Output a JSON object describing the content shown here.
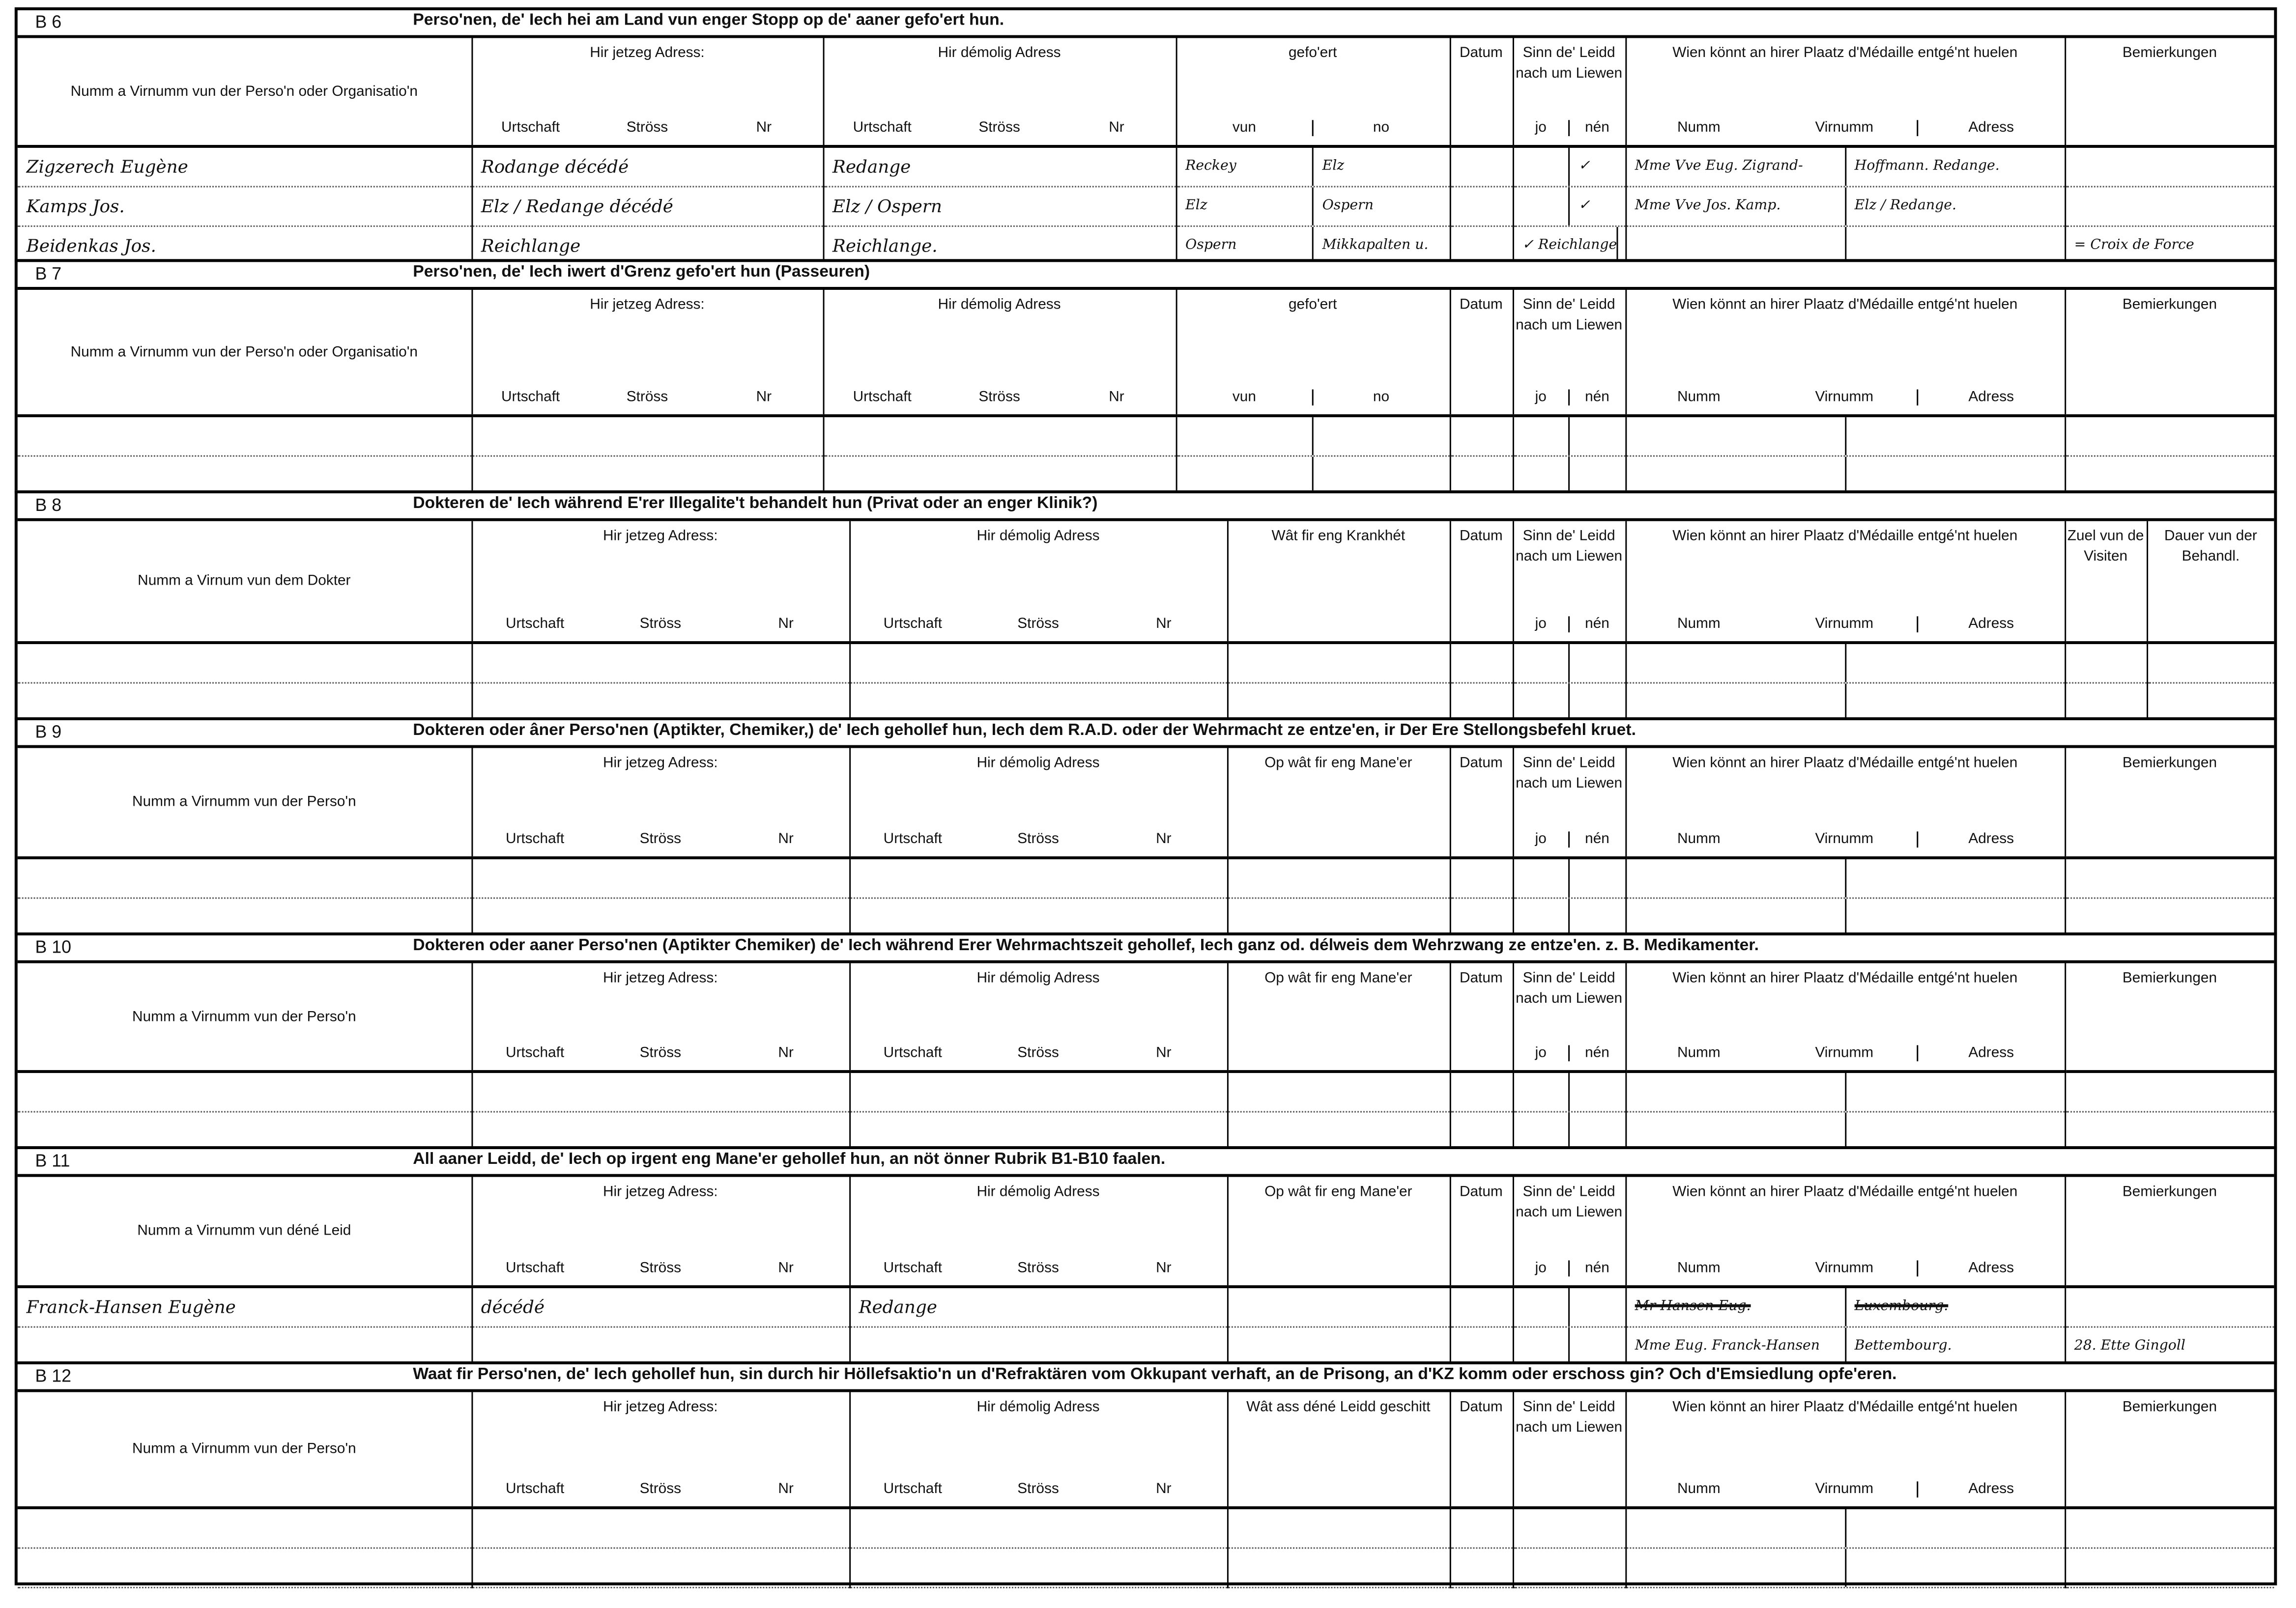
{
  "sections": [
    {
      "label": "B 6",
      "title": "Perso'nen, de' Iech hei am Land vun enger Stopp op de' aaner gefo'ert hun.",
      "columns": [
        {
          "key": "name",
          "header": "Numm a Virnumm vun der Perso'n oder Organisatio'n",
          "subs": []
        },
        {
          "key": "cur",
          "header": "Hir jetzeg Adress:",
          "subs": [
            "Urtschaft",
            "Ströss",
            "Nr"
          ]
        },
        {
          "key": "former",
          "header": "Hir démolig Adress",
          "subs": [
            "Urtschaft",
            "Ströss",
            "Nr"
          ]
        },
        {
          "key": "gefoert",
          "header": "gefo'ert",
          "subs": [
            "vun",
            "no"
          ]
        },
        {
          "key": "datum",
          "header": "Datum",
          "subs": []
        },
        {
          "key": "sinn",
          "header": "Sinn de' Leidd nach um Liewen",
          "subs": [
            "jo",
            "nén"
          ]
        },
        {
          "key": "medaille",
          "header": "Wien könnt an hirer Plaatz d'Médaille entgé'nt huelen",
          "subs": [
            "Numm",
            "Virnumm",
            "Adress"
          ]
        },
        {
          "key": "bem",
          "header": "Bemierkungen",
          "subs": []
        }
      ],
      "rows": [
        [
          "Zigzerech Eugène",
          "Rodange décédé",
          "Redange",
          [
            "Reckey",
            "Elz"
          ],
          "",
          [
            "",
            "✓"
          ],
          [
            "Mme Vve Eug. Zigrand-",
            "Hoffmann. Redange."
          ],
          ""
        ],
        [
          "Kamps Jos.",
          "Elz / Redange décédé",
          "Elz / Ospern",
          [
            "Elz",
            "Ospern"
          ],
          "",
          [
            "",
            "✓"
          ],
          [
            "Mme Vve Jos. Kamp.",
            "Elz / Redange."
          ],
          ""
        ],
        [
          "Beidenkas Jos.",
          "Reichlange",
          "Reichlange.",
          [
            "Ospern",
            "Mikkapalten u."
          ],
          "",
          [
            "✓ Reichlange",
            ""
          ],
          [
            "",
            ""
          ],
          "= Croix de Force"
        ]
      ]
    },
    {
      "label": "B 7",
      "title": "Perso'nen, de' Iech iwert d'Grenz gefo'ert hun (Passeuren)",
      "columns": [
        {
          "key": "name",
          "header": "Numm a Virnumm vun der Perso'n oder Organisatio'n",
          "subs": []
        },
        {
          "key": "cur",
          "header": "Hir jetzeg Adress:",
          "subs": [
            "Urtschaft",
            "Ströss",
            "Nr"
          ]
        },
        {
          "key": "former",
          "header": "Hir démolig Adress",
          "subs": [
            "Urtschaft",
            "Ströss",
            "Nr"
          ]
        },
        {
          "key": "gefoert",
          "header": "gefo'ert",
          "subs": [
            "vun",
            "no"
          ]
        },
        {
          "key": "datum",
          "header": "Datum",
          "subs": []
        },
        {
          "key": "sinn",
          "header": "Sinn de' Leidd nach um Liewen",
          "subs": [
            "jo",
            "nén"
          ]
        },
        {
          "key": "medaille",
          "header": "Wien könnt an hirer Plaatz d'Médaille entgé'nt huelen",
          "subs": [
            "Numm",
            "Virnumm",
            "Adress"
          ]
        },
        {
          "key": "bem",
          "header": "Bemierkungen",
          "subs": []
        }
      ],
      "rows": [
        [
          "",
          "",
          "",
          [
            "",
            ""
          ],
          "",
          [
            "",
            ""
          ],
          [
            "",
            ""
          ],
          ""
        ],
        [
          "",
          "",
          "",
          [
            "",
            ""
          ],
          "",
          [
            "",
            ""
          ],
          [
            "",
            ""
          ],
          ""
        ]
      ]
    },
    {
      "label": "B 8",
      "title": "Dokteren de' Iech während E'rer Illegalite't behandelt hun (Privat oder an enger Klinik?)",
      "columns": [
        {
          "key": "name",
          "header": "Numm a Virnum vun dem Dokter",
          "subs": []
        },
        {
          "key": "cur",
          "header": "Hir jetzeg Adress:",
          "subs": [
            "Urtschaft",
            "Ströss",
            "Nr"
          ]
        },
        {
          "key": "former",
          "header": "Hir démolig Adress",
          "subs": [
            "Urtschaft",
            "Ströss",
            "Nr"
          ]
        },
        {
          "key": "krank",
          "header": "Wât fir eng Krankhét",
          "subs": []
        },
        {
          "key": "datum",
          "header": "Datum",
          "subs": []
        },
        {
          "key": "sinn",
          "header": "Sinn de' Leidd nach um Liewen",
          "subs": [
            "jo",
            "nén"
          ]
        },
        {
          "key": "medaille",
          "header": "Wien könnt an hirer Plaatz d'Médaille entgé'nt huelen",
          "subs": [
            "Numm",
            "Virnumm",
            "Adress"
          ]
        },
        {
          "key": "zuel",
          "header": "Zuel vun de Visiten",
          "subs": []
        },
        {
          "key": "dauer",
          "header": "Dauer vun der Behandl.",
          "subs": []
        }
      ],
      "rows": [
        [
          "",
          "",
          "",
          "",
          "",
          [
            "",
            ""
          ],
          [
            "",
            ""
          ],
          "",
          ""
        ],
        [
          "",
          "",
          "",
          "",
          "",
          [
            "",
            ""
          ],
          [
            "",
            ""
          ],
          "",
          ""
        ]
      ]
    },
    {
      "label": "B 9",
      "title": "Dokteren oder âner Perso'nen (Aptikter, Chemiker,) de' Iech gehollef hun, Iech dem R.A.D. oder der Wehrmacht ze entze'en, ir Der Ere Stellongsbefehl kruet.",
      "columns": [
        {
          "key": "name",
          "header": "Numm a Virnumm vun der Perso'n",
          "subs": []
        },
        {
          "key": "cur",
          "header": "Hir jetzeg Adress:",
          "subs": [
            "Urtschaft",
            "Ströss",
            "Nr"
          ]
        },
        {
          "key": "former",
          "header": "Hir démolig Adress",
          "subs": [
            "Urtschaft",
            "Ströss",
            "Nr"
          ]
        },
        {
          "key": "op",
          "header": "Op wât fir eng Mane'er",
          "subs": []
        },
        {
          "key": "datum",
          "header": "Datum",
          "subs": []
        },
        {
          "key": "sinn",
          "header": "Sinn de' Leidd nach um Liewen",
          "subs": [
            "jo",
            "nén"
          ]
        },
        {
          "key": "medaille",
          "header": "Wien könnt an hirer Plaatz d'Médaille entgé'nt huelen",
          "subs": [
            "Numm",
            "Virnumm",
            "Adress"
          ]
        },
        {
          "key": "bem",
          "header": "Bemierkungen",
          "subs": []
        }
      ],
      "rows": [
        [
          "",
          "",
          "",
          "",
          "",
          [
            "",
            ""
          ],
          [
            "",
            ""
          ],
          ""
        ],
        [
          "",
          "",
          "",
          "",
          "",
          [
            "",
            ""
          ],
          [
            "",
            ""
          ],
          ""
        ]
      ]
    },
    {
      "label": "B 10",
      "title": "Dokteren oder aaner Perso'nen (Aptikter Chemiker) de' Iech während Erer Wehrmachtszeit gehollef, Iech ganz od. délweis dem Wehrzwang ze entze'en. z. B. Medikamenter.",
      "columns": [
        {
          "key": "name",
          "header": "Numm a Virnumm vun der Perso'n",
          "subs": []
        },
        {
          "key": "cur",
          "header": "Hir jetzeg Adress:",
          "subs": [
            "Urtschaft",
            "Ströss",
            "Nr"
          ]
        },
        {
          "key": "former",
          "header": "Hir démolig Adress",
          "subs": [
            "Urtschaft",
            "Ströss",
            "Nr"
          ]
        },
        {
          "key": "op",
          "header": "Op wât fir eng Mane'er",
          "subs": []
        },
        {
          "key": "datum",
          "header": "Datum",
          "subs": []
        },
        {
          "key": "sinn",
          "header": "Sinn de' Leidd nach um Liewen",
          "subs": [
            "jo",
            "nén"
          ]
        },
        {
          "key": "medaille",
          "header": "Wien könnt an hirer Plaatz d'Médaille entgé'nt huelen",
          "subs": [
            "Numm",
            "Virnumm",
            "Adress"
          ]
        },
        {
          "key": "bem",
          "header": "Bemierkungen",
          "subs": []
        }
      ],
      "rows": [
        [
          "",
          "",
          "",
          "",
          "",
          [
            "",
            ""
          ],
          [
            "",
            ""
          ],
          ""
        ],
        [
          "",
          "",
          "",
          "",
          "",
          [
            "",
            ""
          ],
          [
            "",
            ""
          ],
          ""
        ]
      ]
    },
    {
      "label": "B 11",
      "title": "All aaner Leidd, de' Iech op irgent eng Mane'er gehollef hun, an nöt önner Rubrik B1-B10 faalen.",
      "columns": [
        {
          "key": "name",
          "header": "Numm a Virnumm vun déné Leid",
          "subs": []
        },
        {
          "key": "cur",
          "header": "Hir jetzeg Adress:",
          "subs": [
            "Urtschaft",
            "Ströss",
            "Nr"
          ]
        },
        {
          "key": "former",
          "header": "Hir démolig Adress",
          "subs": [
            "Urtschaft",
            "Ströss",
            "Nr"
          ]
        },
        {
          "key": "op",
          "header": "Op wât fir eng Mane'er",
          "subs": []
        },
        {
          "key": "datum",
          "header": "Datum",
          "subs": []
        },
        {
          "key": "sinn",
          "header": "Sinn de' Leidd nach um Liewen",
          "subs": [
            "jo",
            "nén"
          ]
        },
        {
          "key": "medaille",
          "header": "Wien könnt an hirer Plaatz d'Médaille entgé'nt huelen",
          "subs": [
            "Numm",
            "Virnumm",
            "Adress"
          ]
        },
        {
          "key": "bem",
          "header": "Bemierkungen",
          "subs": []
        }
      ],
      "rows": [
        [
          "Franck-Hansen Eugène",
          "décédé",
          "Redange",
          "",
          "",
          [
            "",
            ""
          ],
          [
            "Mr Hansen Eug.",
            "Luxembourg."
          ],
          ""
        ],
        [
          "",
          "",
          "",
          "",
          "",
          [
            "",
            ""
          ],
          [
            "Mme Eug. Franck-Hansen",
            "Bettembourg."
          ],
          "28. Ette Gingoll"
        ]
      ],
      "struck": [
        "Mr Hansen Eug.",
        "Luxembourg."
      ]
    },
    {
      "label": "B 12",
      "title": "Waat fir Perso'nen, de' Iech gehollef hun, sin durch hir Höllefsaktio'n un d'Refraktären vom Okkupant verhaft, an de Prisong, an d'KZ komm oder erschoss gin? Och d'Emsiedlung opfe'eren.",
      "columns": [
        {
          "key": "name",
          "header": "Numm a Virnumm vun der Perso'n",
          "subs": []
        },
        {
          "key": "cur",
          "header": "Hir jetzeg Adress:",
          "subs": [
            "Urtschaft",
            "Ströss",
            "Nr"
          ]
        },
        {
          "key": "former",
          "header": "Hir démolig Adress",
          "subs": [
            "Urtschaft",
            "Ströss",
            "Nr"
          ]
        },
        {
          "key": "wat",
          "header": "Wât ass déné Leidd geschitt",
          "subs": []
        },
        {
          "key": "datum",
          "header": "Datum",
          "subs": []
        },
        {
          "key": "sinn",
          "header": "Sinn de' Leidd nach um Liewen",
          "subs": []
        },
        {
          "key": "medaille",
          "header": "Wien könnt an hirer Plaatz d'Médaille entgé'nt huelen",
          "subs": [
            "Numm",
            "Virnumm",
            "Adress"
          ]
        },
        {
          "key": "bem",
          "header": "Bemierkungen",
          "subs": []
        }
      ],
      "rows": [
        [
          "",
          "",
          "",
          "",
          "",
          "",
          [
            "",
            ""
          ],
          ""
        ],
        [
          "",
          "",
          "",
          "",
          "",
          "",
          [
            "",
            ""
          ],
          ""
        ]
      ]
    }
  ]
}
